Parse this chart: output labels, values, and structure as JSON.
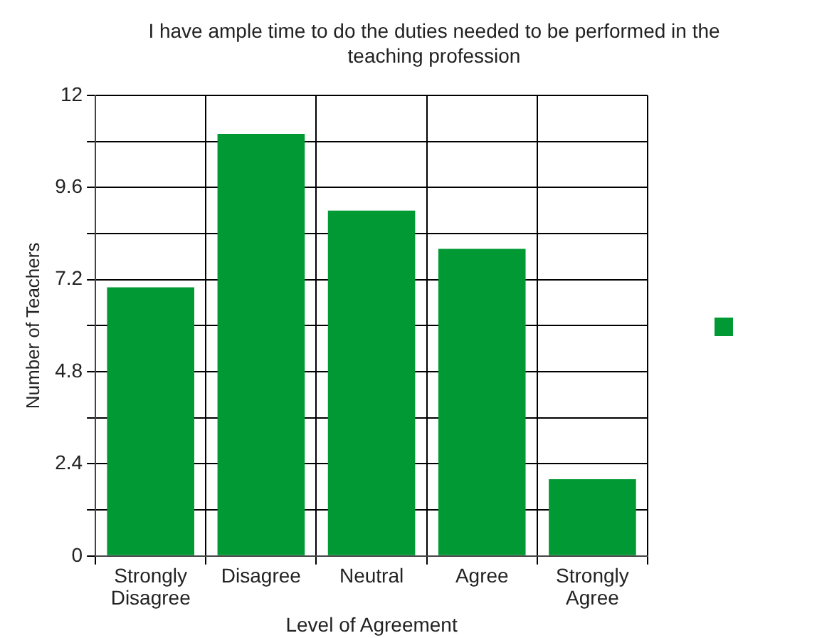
{
  "chart_data": {
    "type": "bar",
    "title": "I have ample time to do the duties needed to be performed in the teaching profession",
    "xlabel": "Level of Agreement",
    "ylabel": "Number of Teachers",
    "categories": [
      "Strongly Disagree",
      "Disagree",
      "Neutral",
      "Agree",
      "Strongly Agree"
    ],
    "values": [
      7,
      11,
      9,
      8,
      2
    ],
    "color": "#009933",
    "ylim": [
      0,
      12
    ],
    "yticks": [
      0,
      {
        "value": 1.2,
        "label": null
      },
      2.4,
      {
        "value": 3.6,
        "label": null
      },
      4.8,
      {
        "value": 6,
        "label": null
      },
      7.2,
      {
        "value": 8.4,
        "label": null
      },
      9.6,
      {
        "value": 10.8,
        "label": null
      },
      12
    ],
    "grid": true
  }
}
